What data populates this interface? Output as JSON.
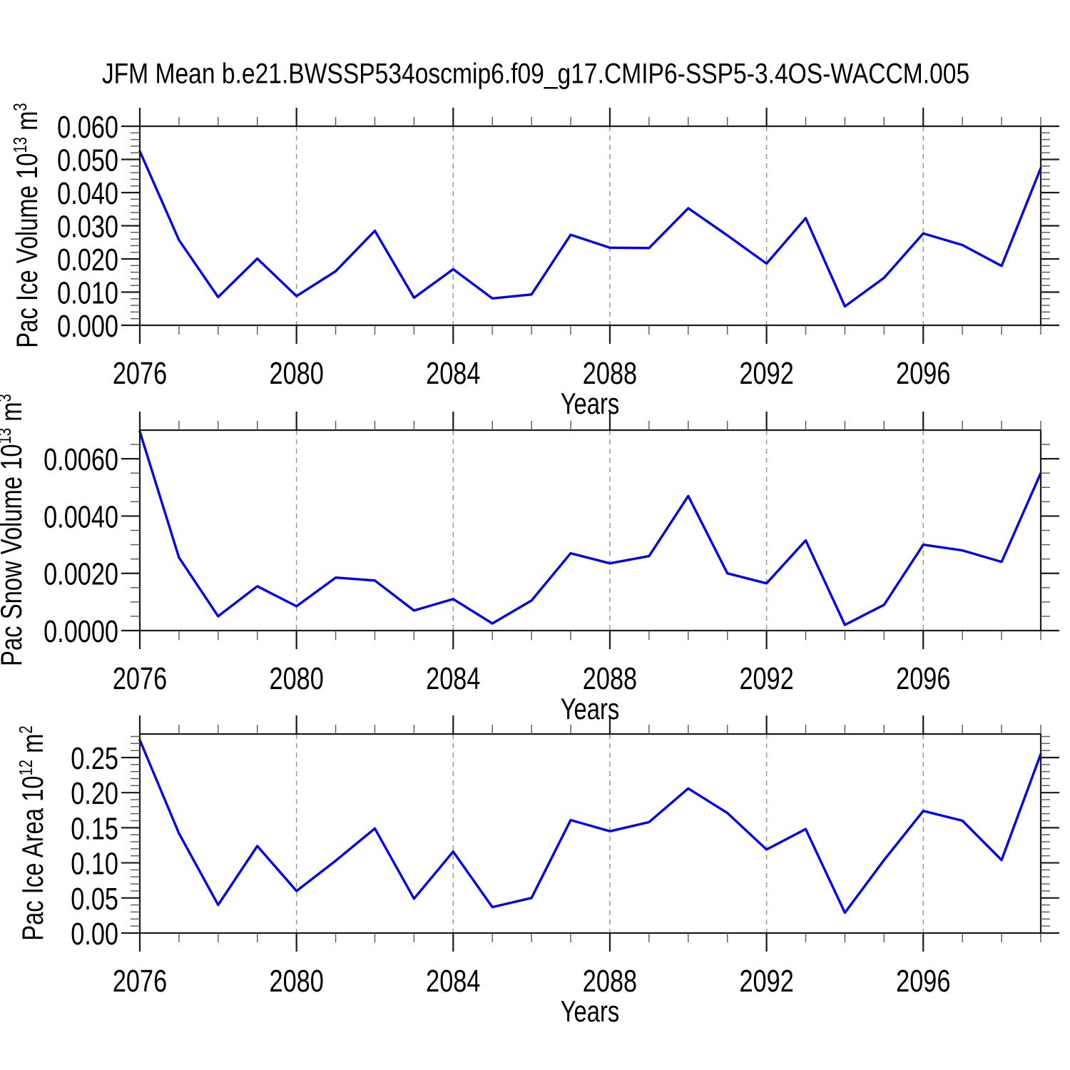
{
  "title": "JFM Mean b.e21.BWSSP534oscmip6.f09_g17.CMIP6-SSP5-3.4OS-WACCM.005",
  "colors": {
    "line": "#0000ee",
    "frame": "#1a1a1a",
    "major_tick": "#1a1a1a",
    "minor_tick": "#555555",
    "grid": "#999999",
    "text": "#000000",
    "background": "#ffffff"
  },
  "x_axis": {
    "label": "Years",
    "range": [
      2076,
      2099
    ],
    "major_ticks": [
      2076,
      2080,
      2084,
      2088,
      2092,
      2096
    ],
    "minor_step": 1,
    "grid_lines": [
      2080,
      2084,
      2088,
      2092,
      2096
    ]
  },
  "chart_data": [
    {
      "type": "line",
      "name": "pac-ice-volume",
      "title": "",
      "xlabel": "Years",
      "ylabel": "Pac Ice Volume 10^13 m^3",
      "ylabel_parts": {
        "base": "Pac Ice Volume 10",
        "exp": "13",
        "unit": " m",
        "unit_exp": "3"
      },
      "legend": null,
      "grid": "vertical-dashed-at-major-x-ticks",
      "x": [
        2076,
        2077,
        2078,
        2079,
        2080,
        2081,
        2082,
        2083,
        2084,
        2085,
        2086,
        2087,
        2088,
        2089,
        2090,
        2091,
        2092,
        2093,
        2094,
        2095,
        2096,
        2097,
        2098,
        2099
      ],
      "values": [
        0.0525,
        0.0257,
        0.0085,
        0.0201,
        0.0088,
        0.0163,
        0.0285,
        0.0083,
        0.0169,
        0.0081,
        0.0093,
        0.0273,
        0.0234,
        0.0233,
        0.0353,
        0.0271,
        0.0186,
        0.0323,
        0.0057,
        0.0143,
        0.0277,
        0.0242,
        0.0179,
        0.0474
      ],
      "ylim": [
        0.0,
        0.06
      ],
      "frame_ylim": [
        0.0,
        0.06
      ],
      "y_major_ticks": [
        0.06,
        0.05,
        0.04,
        0.03,
        0.02,
        0.01,
        0.0
      ],
      "y_tick_labels": [
        "0.060",
        "0.050",
        "0.040",
        "0.030",
        "0.020",
        "0.010",
        "0.000"
      ],
      "y_minor_step": 0.002
    },
    {
      "type": "line",
      "name": "pac-snow-volume",
      "title": "",
      "xlabel": "Years",
      "ylabel": "Pac Snow Volume 10^13 m^3",
      "ylabel_parts": {
        "base": "Pac Snow Volume 10",
        "exp": "13",
        "unit": " m",
        "unit_exp": "3"
      },
      "legend": null,
      "grid": "vertical-dashed-at-major-x-ticks",
      "x": [
        2076,
        2077,
        2078,
        2079,
        2080,
        2081,
        2082,
        2083,
        2084,
        2085,
        2086,
        2087,
        2088,
        2089,
        2090,
        2091,
        2092,
        2093,
        2094,
        2095,
        2096,
        2097,
        2098,
        2099
      ],
      "values": [
        0.00695,
        0.00255,
        0.0005,
        0.00155,
        0.00085,
        0.00185,
        0.00175,
        0.0007,
        0.0011,
        0.00025,
        0.00105,
        0.0027,
        0.00235,
        0.0026,
        0.0047,
        0.002,
        0.00165,
        0.00315,
        0.0002,
        0.0009,
        0.003,
        0.0028,
        0.0024,
        0.0055
      ],
      "ylim": [
        0.0,
        0.006
      ],
      "frame_ylim": [
        0.0,
        0.007
      ],
      "y_major_ticks": [
        0.006,
        0.004,
        0.002,
        0.0
      ],
      "y_tick_labels": [
        "0.0060",
        "0.0040",
        "0.0020",
        "0.0000"
      ],
      "y_minor_step": 0.0005
    },
    {
      "type": "line",
      "name": "pac-ice-area",
      "title": "",
      "xlabel": "Years",
      "ylabel": "Pac Ice Area 10^12 m^2",
      "ylabel_parts": {
        "base": "Pac Ice Area 10",
        "exp": "12",
        "unit": " m",
        "unit_exp": "2"
      },
      "legend": null,
      "grid": "vertical-dashed-at-major-x-ticks",
      "x": [
        2076,
        2077,
        2078,
        2079,
        2080,
        2081,
        2082,
        2083,
        2084,
        2085,
        2086,
        2087,
        2088,
        2089,
        2090,
        2091,
        2092,
        2093,
        2094,
        2095,
        2096,
        2097,
        2098,
        2099
      ],
      "values": [
        0.275,
        0.142,
        0.04,
        0.124,
        0.06,
        0.103,
        0.149,
        0.049,
        0.116,
        0.037,
        0.05,
        0.161,
        0.145,
        0.158,
        0.206,
        0.171,
        0.119,
        0.148,
        0.029,
        0.104,
        0.174,
        0.16,
        0.104,
        0.255
      ],
      "ylim": [
        0.0,
        0.25
      ],
      "frame_ylim": [
        0.0,
        0.2835
      ],
      "y_major_ticks": [
        0.25,
        0.2,
        0.15,
        0.1,
        0.05,
        0.0
      ],
      "y_tick_labels": [
        "0.25",
        "0.20",
        "0.15",
        "0.10",
        "0.05",
        "0.00"
      ],
      "y_minor_step": 0.01
    }
  ]
}
